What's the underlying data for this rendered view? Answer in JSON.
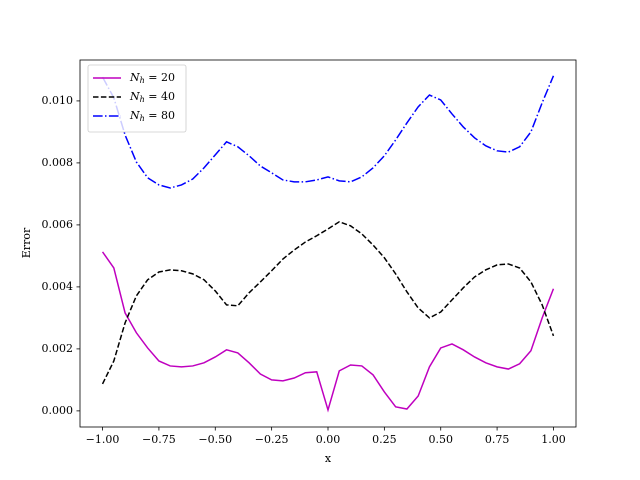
{
  "chart_data": {
    "type": "line",
    "xlabel": "x",
    "ylabel": "Error",
    "x": [
      -1.0,
      -0.95,
      -0.9,
      -0.85,
      -0.8,
      -0.75,
      -0.7,
      -0.65,
      -0.6,
      -0.55,
      -0.5,
      -0.45,
      -0.4,
      -0.35,
      -0.3,
      -0.25,
      -0.2,
      -0.15,
      -0.1,
      -0.05,
      0.0,
      0.05,
      0.1,
      0.15,
      0.2,
      0.25,
      0.3,
      0.35,
      0.4,
      0.45,
      0.5,
      0.55,
      0.6,
      0.65,
      0.7,
      0.75,
      0.8,
      0.85,
      0.9,
      0.95,
      1.0
    ],
    "series": [
      {
        "name": "N_h = 20",
        "color": "#bf00bf",
        "linestyle": "solid",
        "values": [
          0.00513,
          0.00461,
          0.00316,
          0.00252,
          0.00203,
          0.00161,
          0.00145,
          0.00142,
          0.00145,
          0.00155,
          0.00174,
          0.00197,
          0.00187,
          0.00155,
          0.00119,
          0.001,
          0.00097,
          0.00106,
          0.00123,
          0.00126,
          3e-05,
          0.00129,
          0.00148,
          0.00145,
          0.00116,
          0.00061,
          0.00013,
          6e-05,
          0.00048,
          0.00142,
          0.00203,
          0.00216,
          0.00197,
          0.00174,
          0.00155,
          0.00142,
          0.00135,
          0.00152,
          0.00194,
          0.003,
          0.00394
        ]
      },
      {
        "name": "N_h = 40",
        "color": "#000000",
        "linestyle": "dashed",
        "values": [
          0.00087,
          0.00161,
          0.00284,
          0.00371,
          0.00423,
          0.00448,
          0.00455,
          0.00452,
          0.00442,
          0.00423,
          0.00387,
          0.00342,
          0.00339,
          0.00381,
          0.00416,
          0.00452,
          0.0049,
          0.00519,
          0.00545,
          0.00565,
          0.00587,
          0.0061,
          0.00597,
          0.00571,
          0.00535,
          0.00494,
          0.00442,
          0.00384,
          0.00332,
          0.003,
          0.00319,
          0.00358,
          0.00397,
          0.00432,
          0.00455,
          0.00471,
          0.00474,
          0.00461,
          0.00416,
          0.00342,
          0.00242
        ]
      },
      {
        "name": "N_h = 80",
        "color": "#0000ff",
        "linestyle": "dashdot",
        "values": [
          0.01077,
          0.0101,
          0.0089,
          0.00803,
          0.00752,
          0.00729,
          0.00719,
          0.00729,
          0.00748,
          0.00784,
          0.00826,
          0.00868,
          0.00852,
          0.00823,
          0.0079,
          0.00768,
          0.00745,
          0.00739,
          0.00739,
          0.00745,
          0.00755,
          0.00742,
          0.00739,
          0.00755,
          0.00784,
          0.00823,
          0.00874,
          0.00929,
          0.00981,
          0.01019,
          0.01003,
          0.00958,
          0.00916,
          0.00881,
          0.00855,
          0.00839,
          0.00835,
          0.00852,
          0.009,
          0.00994,
          0.01081
        ]
      }
    ],
    "xlim": [
      -1.1,
      1.1
    ],
    "xticks": [
      {
        "value": -1.0,
        "label": "−1.00"
      },
      {
        "value": -0.75,
        "label": "−0.75"
      },
      {
        "value": -0.5,
        "label": "−0.50"
      },
      {
        "value": -0.25,
        "label": "−0.25"
      },
      {
        "value": 0,
        "label": "0.00"
      },
      {
        "value": 0.25,
        "label": "0.25"
      },
      {
        "value": 0.5,
        "label": "0.50"
      },
      {
        "value": 0.75,
        "label": "0.75"
      },
      {
        "value": 1.0,
        "label": "1.00"
      }
    ],
    "ylim": [
      -0.00052,
      0.01132
    ],
    "yticks": [
      {
        "value": 0,
        "label": "0.000"
      },
      {
        "value": 0.002,
        "label": "0.002"
      },
      {
        "value": 0.004,
        "label": "0.004"
      },
      {
        "value": 0.006,
        "label": "0.006"
      },
      {
        "value": 0.008,
        "label": "0.008"
      },
      {
        "value": 0.01,
        "label": "0.010"
      }
    ],
    "grid": false,
    "legend": "upper left"
  }
}
